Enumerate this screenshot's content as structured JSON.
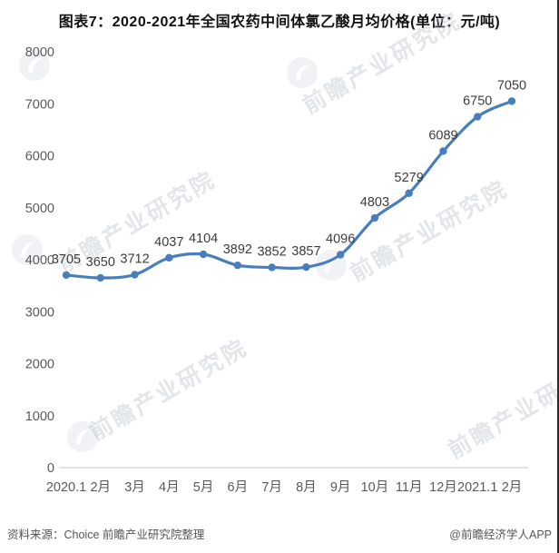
{
  "chart_data": {
    "type": "line",
    "title": "图表7：2020-2021年全国农药中间体氯乙酸月均价格(单位：元/吨)",
    "categories": [
      "2020.1",
      "2月",
      "3月",
      "4月",
      "5月",
      "6月",
      "7月",
      "8月",
      "9月",
      "10月",
      "11月",
      "12月",
      "2021.1",
      "2月"
    ],
    "values": [
      3705,
      3650,
      3712,
      4037,
      4104,
      3892,
      3852,
      3857,
      4096,
      4803,
      5279,
      6089,
      6750,
      7050
    ],
    "ylabel": "",
    "xlabel": "",
    "ylim": [
      0,
      8000
    ],
    "ytick_step": 1000,
    "grid": false,
    "legend": "none",
    "data_labels_shown": true,
    "smoothed_line": true,
    "line_color": "#4a7ebb",
    "marker_color": "#4a7ebb",
    "data_label_color": "#3c3c3c",
    "axis_text_color": "#595959",
    "axis_line_color": "#d0d0d0"
  },
  "watermark": {
    "text": "前瞻产业研究院",
    "logo": "qianzhan-swoosh-logo"
  },
  "footer": {
    "source": "资料来源：Choice 前瞻产业研究院整理",
    "credit": "@前瞻经济学人APP"
  }
}
